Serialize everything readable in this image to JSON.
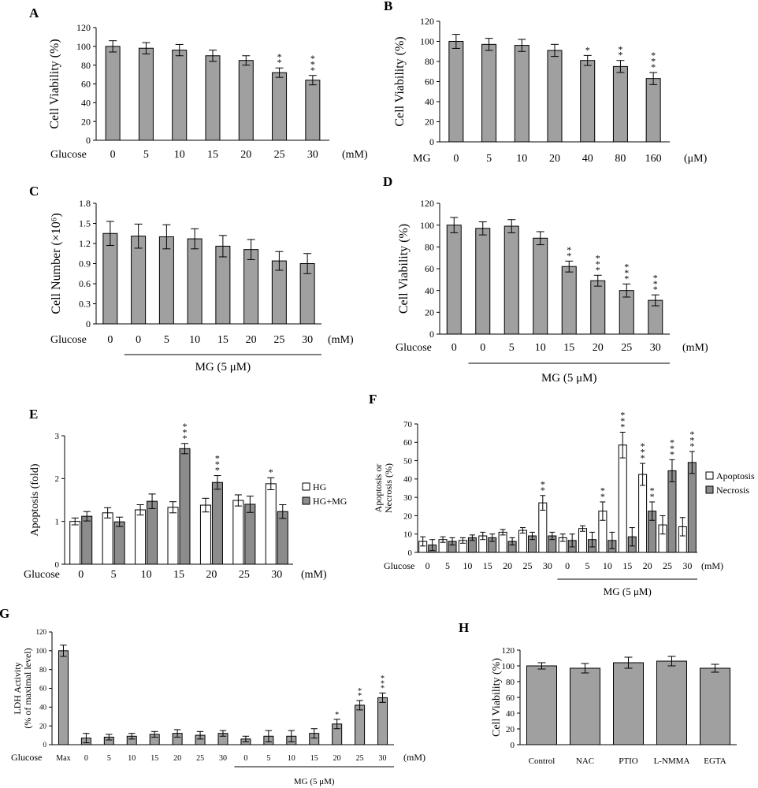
{
  "chart_data": [
    {
      "id": "A",
      "type": "bar",
      "panel_label": "A",
      "ylabel": "Cell Viability (%)",
      "ylim": [
        0,
        120
      ],
      "yticks": [
        "0",
        "20",
        "40",
        "60",
        "80",
        "100",
        "120"
      ],
      "row_label": "Glucose",
      "unit": "(mM)",
      "categories": [
        "0",
        "5",
        "10",
        "15",
        "20",
        "25",
        "30"
      ],
      "series": [
        {
          "name": "Cell Viability",
          "fill": "#a0a0a0",
          "values": [
            100,
            98,
            96,
            90,
            85,
            72,
            64
          ],
          "errors": [
            6,
            6,
            6,
            6,
            5,
            5,
            5
          ],
          "stars": [
            "",
            "",
            "",
            "",
            "",
            "**",
            "***"
          ]
        }
      ]
    },
    {
      "id": "B",
      "type": "bar",
      "panel_label": "B",
      "ylabel": "Cell Viability (%)",
      "ylim": [
        0,
        120
      ],
      "yticks": [
        "0",
        "20",
        "40",
        "60",
        "80",
        "100",
        "120"
      ],
      "row_label": "MG",
      "unit": "(μM)",
      "categories": [
        "0",
        "5",
        "10",
        "20",
        "40",
        "80",
        "160"
      ],
      "series": [
        {
          "name": "Cell Viability",
          "fill": "#a0a0a0",
          "values": [
            100,
            97,
            96,
            91,
            81,
            75,
            63
          ],
          "errors": [
            7,
            6,
            6,
            6,
            5,
            6,
            6
          ],
          "stars": [
            "",
            "",
            "",
            "",
            "*",
            "**",
            "***"
          ]
        }
      ]
    },
    {
      "id": "C",
      "type": "bar",
      "panel_label": "C",
      "ylabel": "Cell Number (×10⁶)",
      "ylim": [
        0,
        1.8
      ],
      "yticks": [
        "0",
        "0.3",
        "0.6",
        "0.9",
        "1.2",
        "1.5",
        "1.8"
      ],
      "row_label": "Glucose",
      "unit": "(mM)",
      "categories": [
        "0",
        "0",
        "5",
        "10",
        "15",
        "20",
        "25",
        "30"
      ],
      "group_label": "MG (5 μM)",
      "series": [
        {
          "name": "Cell Number",
          "fill": "#a0a0a0",
          "values": [
            1.35,
            1.31,
            1.3,
            1.27,
            1.16,
            1.11,
            0.94,
            0.9
          ],
          "errors": [
            0.18,
            0.18,
            0.18,
            0.15,
            0.16,
            0.15,
            0.14,
            0.15
          ],
          "stars": [
            "",
            "",
            "",
            "",
            "",
            "",
            "",
            ""
          ]
        }
      ]
    },
    {
      "id": "D",
      "type": "bar",
      "panel_label": "D",
      "ylabel": "Cell Viability (%)",
      "ylim": [
        0,
        120
      ],
      "yticks": [
        "0",
        "20",
        "40",
        "60",
        "80",
        "100",
        "120"
      ],
      "row_label": "Glucose",
      "unit": "(mM)",
      "categories": [
        "0",
        "0",
        "5",
        "10",
        "15",
        "20",
        "25",
        "30"
      ],
      "group_label": "MG (5 μM)",
      "series": [
        {
          "name": "Cell Viability",
          "fill": "#a0a0a0",
          "values": [
            100,
            97,
            99,
            88,
            62,
            49,
            40,
            31
          ],
          "errors": [
            7,
            6,
            6,
            6,
            5,
            5,
            6,
            5
          ],
          "stars": [
            "",
            "",
            "",
            "",
            "**",
            "***",
            "***",
            "***"
          ]
        }
      ]
    },
    {
      "id": "E",
      "type": "bar",
      "panel_label": "E",
      "ylabel": "Apoptosis (fold)",
      "ylim": [
        0,
        3
      ],
      "yticks": [
        "0",
        "1",
        "2",
        "3"
      ],
      "row_label": "Glucose",
      "unit": "(mM)",
      "categories": [
        "0",
        "5",
        "10",
        "15",
        "20",
        "25",
        "30"
      ],
      "legend": "right",
      "series": [
        {
          "name": "HG",
          "fill": "#ffffff",
          "values": [
            1.0,
            1.2,
            1.27,
            1.33,
            1.38,
            1.49,
            1.88
          ],
          "errors": [
            0.08,
            0.12,
            0.12,
            0.13,
            0.16,
            0.13,
            0.14
          ],
          "stars": [
            "",
            "",
            "",
            "",
            "",
            "",
            "*"
          ]
        },
        {
          "name": "HG+MG",
          "fill": "#8c8c8c",
          "values": [
            1.12,
            0.99,
            1.47,
            2.7,
            1.91,
            1.4,
            1.23
          ],
          "errors": [
            0.11,
            0.11,
            0.17,
            0.12,
            0.16,
            0.19,
            0.16
          ],
          "stars": [
            "",
            "",
            "",
            "***",
            "***",
            "",
            ""
          ]
        }
      ]
    },
    {
      "id": "F",
      "type": "bar",
      "panel_label": "F",
      "ylabel": "Apoptosis or Necrosis (%)",
      "ylim": [
        0,
        70
      ],
      "yticks": [
        "0",
        "10",
        "20",
        "30",
        "40",
        "50",
        "60",
        "70"
      ],
      "row_label": "Glucose",
      "unit": "(mM)",
      "categories": [
        "0",
        "5",
        "10",
        "15",
        "20",
        "25",
        "30",
        "0",
        "5",
        "10",
        "15",
        "20",
        "25",
        "30"
      ],
      "group_label": "MG (5 μM)",
      "legend": "right",
      "series": [
        {
          "name": "Apoptosis",
          "fill": "#ffffff",
          "values": [
            6,
            7,
            6.5,
            9,
            11,
            12,
            27,
            8,
            13,
            22.5,
            58.5,
            42.5,
            15,
            14
          ],
          "errors": [
            2.5,
            1.5,
            1.5,
            2,
            1.5,
            1.5,
            4,
            2,
            1.5,
            5,
            7,
            6,
            5,
            5
          ],
          "stars": [
            "",
            "",
            "",
            "",
            "",
            "",
            "**",
            "",
            "",
            "**",
            "***",
            "***",
            "",
            ""
          ]
        },
        {
          "name": "Necrosis",
          "fill": "#8c8c8c",
          "values": [
            4,
            6,
            8,
            8,
            6,
            9,
            9,
            6.5,
            7,
            6.5,
            8.5,
            22.5,
            44.5,
            49
          ],
          "errors": [
            3,
            2,
            1.5,
            2,
            2,
            2,
            2,
            3.5,
            4,
            4.5,
            5,
            5,
            6,
            6
          ],
          "stars": [
            "",
            "",
            "",
            "",
            "",
            "",
            "",
            "",
            "",
            "",
            "",
            "**",
            "***",
            "***"
          ]
        }
      ]
    },
    {
      "id": "G",
      "type": "bar",
      "panel_label": "G",
      "ylabel": "LDH Activity (% of maximal level)",
      "ylim": [
        0,
        120
      ],
      "yticks": [
        "0",
        "20",
        "40",
        "60",
        "80",
        "100",
        "120"
      ],
      "row_label": "Glucose",
      "unit": "(mM)",
      "categories": [
        "Max",
        "0",
        "5",
        "10",
        "15",
        "20",
        "25",
        "30",
        "0",
        "5",
        "10",
        "15",
        "20",
        "25",
        "30"
      ],
      "group_label": "MG (5 μM)",
      "series": [
        {
          "name": "LDH Activity",
          "fill": "#a0a0a0",
          "values": [
            100,
            7,
            8,
            9,
            11,
            12,
            10,
            12,
            6,
            9,
            9,
            12,
            22,
            42,
            50
          ],
          "errors": [
            6,
            5,
            3,
            3,
            3,
            4,
            4,
            3,
            3,
            6,
            6,
            5,
            5,
            5,
            5
          ],
          "stars": [
            "",
            "",
            "",
            "",
            "",
            "",
            "",
            "",
            "",
            "",
            "",
            "",
            "*",
            "**",
            "***"
          ]
        }
      ]
    },
    {
      "id": "H",
      "type": "bar",
      "panel_label": "H",
      "ylabel": "Cell Viability (%)",
      "ylim": [
        0,
        120
      ],
      "yticks": [
        "0",
        "20",
        "40",
        "60",
        "80",
        "100",
        "120"
      ],
      "categories": [
        "Control",
        "NAC",
        "PTIO",
        "L-NMMA",
        "EGTA"
      ],
      "series": [
        {
          "name": "Cell Viability",
          "fill": "#a0a0a0",
          "values": [
            100,
            97,
            104,
            106,
            97
          ],
          "errors": [
            4,
            6,
            7,
            6,
            5
          ],
          "stars": [
            "",
            "",
            "",
            "",
            ""
          ]
        }
      ]
    }
  ]
}
